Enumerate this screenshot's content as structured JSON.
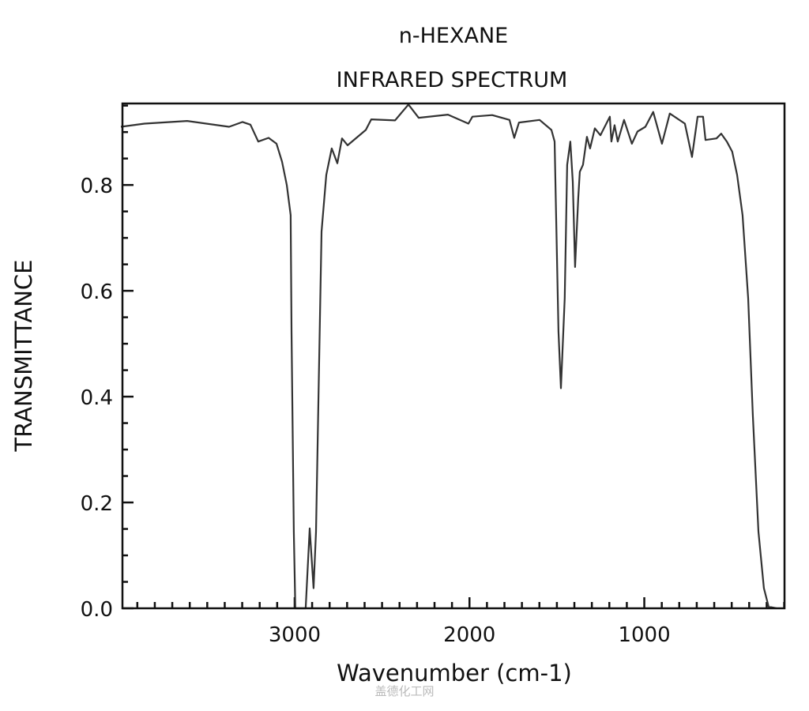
{
  "chart_data": {
    "type": "line",
    "title": "n-HEXANE",
    "subtitle": "INFRARED SPECTRUM",
    "xlabel": "Wavenumber (cm-1)",
    "ylabel": "TRANSMITTANCE",
    "xlim": [
      3985,
      198
    ],
    "ylim": [
      0,
      0.954
    ],
    "x_ticks": [
      3000,
      2000,
      1000
    ],
    "x_tick_labels": [
      "3000",
      "2000",
      "1000"
    ],
    "x_minor_step": 100,
    "y_ticks": [
      0.0,
      0.2,
      0.4,
      0.6,
      0.8
    ],
    "y_tick_labels": [
      "0.0",
      "0.2",
      "0.4",
      "0.6",
      "0.8"
    ],
    "y_minor_step": 0.05,
    "grid": false,
    "line_color": "#333333",
    "series": [
      {
        "name": "n-hexane",
        "x": [
          3994,
          3859,
          3615,
          3375,
          3298,
          3253,
          3208,
          3149,
          3104,
          3072,
          3045,
          3023,
          3018,
          3005,
          2996,
          2937,
          2914,
          2892,
          2878,
          2864,
          2846,
          2819,
          2788,
          2756,
          2729,
          2697,
          2593,
          2562,
          2426,
          2349,
          2291,
          2123,
          2006,
          1983,
          1870,
          1771,
          1744,
          1717,
          1599,
          1531,
          1513,
          1491,
          1477,
          1455,
          1441,
          1423,
          1409,
          1396,
          1378,
          1369,
          1351,
          1328,
          1310,
          1283,
          1251,
          1197,
          1188,
          1170,
          1152,
          1116,
          1071,
          1039,
          994,
          949,
          899,
          854,
          768,
          727,
          695,
          664,
          650,
          587,
          560,
          528,
          497,
          469,
          438,
          406,
          379,
          347,
          316,
          289,
          244
        ],
        "y": [
          0.91,
          0.916,
          0.921,
          0.91,
          0.919,
          0.914,
          0.882,
          0.889,
          0.878,
          0.844,
          0.8,
          0.743,
          0.523,
          0.145,
          0.0,
          0.0,
          0.151,
          0.038,
          0.145,
          0.397,
          0.712,
          0.819,
          0.869,
          0.841,
          0.888,
          0.875,
          0.904,
          0.924,
          0.922,
          0.952,
          0.927,
          0.933,
          0.916,
          0.929,
          0.932,
          0.923,
          0.889,
          0.918,
          0.923,
          0.904,
          0.882,
          0.523,
          0.416,
          0.586,
          0.838,
          0.882,
          0.806,
          0.645,
          0.775,
          0.825,
          0.838,
          0.891,
          0.869,
          0.907,
          0.894,
          0.929,
          0.882,
          0.913,
          0.882,
          0.923,
          0.878,
          0.901,
          0.91,
          0.938,
          0.878,
          0.935,
          0.916,
          0.853,
          0.929,
          0.929,
          0.885,
          0.888,
          0.897,
          0.882,
          0.863,
          0.819,
          0.743,
          0.586,
          0.365,
          0.145,
          0.038,
          0.003,
          0.0
        ]
      }
    ]
  },
  "watermark": "盖德化工网"
}
